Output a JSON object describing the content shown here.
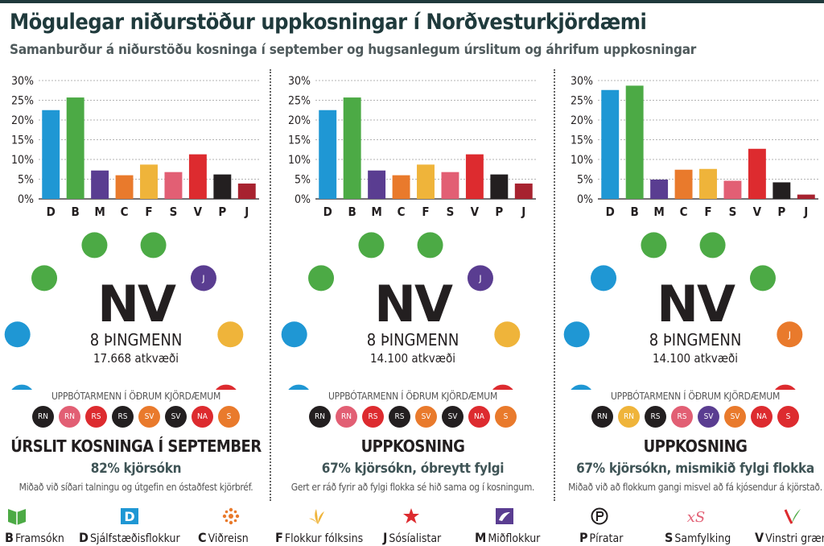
{
  "header": {
    "title": "Mögulegar niðurstöður uppkosningar í Norðvesturkjördæmi",
    "subtitle": "Samanburður á niðurstöðu kosninga í september og hugsanlegum úrslitum og áhrifum uppkosningar"
  },
  "colors": {
    "D": "#1f97d4",
    "B": "#4caa45",
    "M": "#5a3d91",
    "C": "#e97a2c",
    "F": "#efb43a",
    "S": "#e25f74",
    "V": "#dd2b2f",
    "P": "#231f20",
    "J": "#a7222f",
    "RN": "#231f20",
    "NA": "#dd2b2f",
    "SV": "#e97a2c",
    "header": "#1f3a3c",
    "subheader": "#4f5a5c",
    "turnout": "#3f5456"
  },
  "chart_data": [
    {
      "type": "bar",
      "categories": [
        "D",
        "B",
        "M",
        "C",
        "F",
        "S",
        "V",
        "P",
        "J"
      ],
      "values": [
        22.5,
        25.7,
        7.2,
        6.0,
        8.7,
        6.8,
        11.3,
        6.2,
        3.9
      ],
      "ylim": [
        0,
        30
      ],
      "yticks": [
        "0%",
        "5%",
        "10%",
        "15%",
        "20%",
        "25%",
        "30%"
      ],
      "grid": true
    },
    {
      "type": "bar",
      "categories": [
        "D",
        "B",
        "M",
        "C",
        "F",
        "S",
        "V",
        "P",
        "J"
      ],
      "values": [
        22.5,
        25.7,
        7.2,
        6.0,
        8.7,
        6.8,
        11.3,
        6.2,
        3.9
      ],
      "ylim": [
        0,
        30
      ],
      "yticks": [
        "0%",
        "5%",
        "10%",
        "15%",
        "20%",
        "25%",
        "30%"
      ],
      "grid": true
    },
    {
      "type": "bar",
      "categories": [
        "D",
        "B",
        "M",
        "C",
        "F",
        "S",
        "V",
        "P",
        "J"
      ],
      "values": [
        27.6,
        28.7,
        4.9,
        7.4,
        7.6,
        4.6,
        12.7,
        4.2,
        1.1
      ],
      "ylim": [
        0,
        30
      ],
      "yticks": [
        "0%",
        "5%",
        "10%",
        "15%",
        "20%",
        "25%",
        "30%"
      ],
      "grid": true
    }
  ],
  "panels": [
    {
      "seats": [
        {
          "party": "D",
          "label": ""
        },
        {
          "party": "D",
          "label": ""
        },
        {
          "party": "B",
          "label": ""
        },
        {
          "party": "B",
          "label": ""
        },
        {
          "party": "B",
          "label": ""
        },
        {
          "party": "J",
          "label": "J",
          "color": "#5a3d91"
        },
        {
          "party": "F",
          "label": ""
        },
        {
          "party": "V",
          "label": ""
        }
      ],
      "district": "NV",
      "mps": "8 ÞINGMENN",
      "votes": "17.668 atkvæði",
      "compensation_label": "UPPBÓTARMENN Í ÖÐRUM KJÖRDÆMUM",
      "compensation": [
        {
          "label": "RN",
          "color": "#231f20"
        },
        {
          "label": "RN",
          "color": "#e25f74"
        },
        {
          "label": "RS",
          "color": "#dd2b2f"
        },
        {
          "label": "RS",
          "color": "#231f20"
        },
        {
          "label": "SV",
          "color": "#e97a2c"
        },
        {
          "label": "SV",
          "color": "#231f20"
        },
        {
          "label": "NA",
          "color": "#dd2b2f"
        },
        {
          "label": "S",
          "color": "#e97a2c"
        }
      ],
      "scenario_title": "ÚRSLIT KOSNINGA Í SEPTEMBER",
      "turnout": "82% kjörsókn",
      "note": "Miðað við síðari talningu og útgefin en óstaðfest kjörbréf."
    },
    {
      "seats": [
        {
          "party": "D",
          "label": ""
        },
        {
          "party": "D",
          "label": ""
        },
        {
          "party": "B",
          "label": ""
        },
        {
          "party": "B",
          "label": ""
        },
        {
          "party": "B",
          "label": ""
        },
        {
          "party": "J",
          "label": "J",
          "color": "#5a3d91"
        },
        {
          "party": "F",
          "label": ""
        },
        {
          "party": "V",
          "label": ""
        }
      ],
      "district": "NV",
      "mps": "8 ÞINGMENN",
      "votes": "14.100 atkvæði",
      "compensation_label": "UPPBÓTARMENN Í ÖÐRUM KJÖRDÆMUM",
      "compensation": [
        {
          "label": "RN",
          "color": "#231f20"
        },
        {
          "label": "RN",
          "color": "#e25f74"
        },
        {
          "label": "RS",
          "color": "#dd2b2f"
        },
        {
          "label": "RS",
          "color": "#231f20"
        },
        {
          "label": "SV",
          "color": "#e97a2c"
        },
        {
          "label": "SV",
          "color": "#231f20"
        },
        {
          "label": "NA",
          "color": "#dd2b2f"
        },
        {
          "label": "S",
          "color": "#e97a2c"
        }
      ],
      "scenario_title": "UPPKOSNING",
      "turnout": "67% kjörsókn, óbreytt fylgi",
      "note": "Gert er ráð fyrir að fylgi flokka sé hið sama og í kosningum."
    },
    {
      "seats": [
        {
          "party": "D",
          "label": ""
        },
        {
          "party": "D",
          "label": ""
        },
        {
          "party": "D",
          "label": ""
        },
        {
          "party": "B",
          "label": ""
        },
        {
          "party": "B",
          "label": ""
        },
        {
          "party": "B",
          "label": ""
        },
        {
          "party": "J",
          "label": "J",
          "color": "#e97a2c"
        },
        {
          "party": "V",
          "label": ""
        }
      ],
      "district": "NV",
      "mps": "8 ÞINGMENN",
      "votes": "14.100 atkvæði",
      "compensation_label": "UPPBÓTARMENN Í ÖÐRUM KJÖRDÆMUM",
      "compensation": [
        {
          "label": "RN",
          "color": "#231f20"
        },
        {
          "label": "RN",
          "color": "#efb43a"
        },
        {
          "label": "RS",
          "color": "#231f20"
        },
        {
          "label": "RS",
          "color": "#e25f74"
        },
        {
          "label": "SV",
          "color": "#5a3d91"
        },
        {
          "label": "SV",
          "color": "#e97a2c"
        },
        {
          "label": "NA",
          "color": "#dd2b2f"
        },
        {
          "label": "S",
          "color": "#dd2b2f"
        }
      ],
      "scenario_title": "UPPKOSNING",
      "turnout": "67% kjörsókn, mismikið fylgi flokka",
      "note": "Miðað við að flokkum gangi misvel að fá kjósendur á kjörstað."
    }
  ],
  "legend": [
    {
      "letter": "B",
      "name": "Framsókn",
      "icon": "framsokn-icon",
      "color": "#4caa45"
    },
    {
      "letter": "D",
      "name": "Sjálfstæðisflokkur",
      "icon": "sjalfstaedisflokkur-icon",
      "color": "#1f97d4"
    },
    {
      "letter": "C",
      "name": "Viðreisn",
      "icon": "vidreisn-icon",
      "color": "#e97a2c"
    },
    {
      "letter": "F",
      "name": "Flokkur fólksins",
      "icon": "flokkur-folksins-icon",
      "color": "#efb43a"
    },
    {
      "letter": "J",
      "name": "Sósíalistar",
      "icon": "sosialistar-icon",
      "color": "#dd2b2f"
    },
    {
      "letter": "M",
      "name": "Miðflokkur",
      "icon": "midflokkur-icon",
      "color": "#5a3d91"
    },
    {
      "letter": "P",
      "name": "Píratar",
      "icon": "piratar-icon",
      "color": "#231f20"
    },
    {
      "letter": "S",
      "name": "Samfylking",
      "icon": "samfylking-icon",
      "color": "#e25f74"
    },
    {
      "letter": "V",
      "name": "Vinstri græn",
      "icon": "vinstri-graen-icon",
      "color": "#dd2b2f"
    }
  ]
}
